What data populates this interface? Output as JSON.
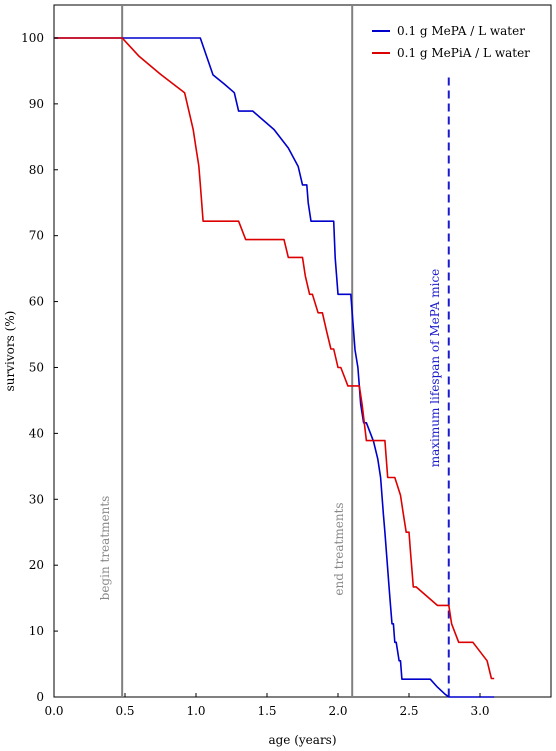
{
  "chart_data": {
    "type": "line",
    "title": "",
    "xlabel": "age (years)",
    "ylabel": "survivors (%)",
    "xlim": [
      0,
      3.5
    ],
    "ylim": [
      0,
      105
    ],
    "xticks": [
      0.0,
      0.5,
      1.0,
      1.5,
      2.0,
      2.5,
      3.0
    ],
    "xtick_labels": [
      "0.0",
      "0.5",
      "1.0",
      "1.5",
      "2.0",
      "2.5",
      "3.0"
    ],
    "yticks": [
      0,
      10,
      20,
      30,
      40,
      50,
      60,
      70,
      80,
      90,
      100
    ],
    "ytick_labels": [
      "0",
      "10",
      "20",
      "30",
      "40",
      "50",
      "60",
      "70",
      "80",
      "90",
      "100"
    ],
    "grid": false,
    "legend_position": "top-right",
    "series": [
      {
        "name": "0.1 g MePA / L water",
        "color": "#0000cc",
        "x": [
          0,
          1.03,
          1.12,
          1.2,
          1.27,
          1.3,
          1.31,
          1.4,
          1.55,
          1.65,
          1.72,
          1.75,
          1.76,
          1.78,
          1.79,
          1.81,
          1.82,
          1.97,
          1.98,
          1.99,
          2.0,
          2.01,
          2.02,
          2.09,
          2.1,
          2.11,
          2.12,
          2.14,
          2.16,
          2.18,
          2.2,
          2.25,
          2.28,
          2.3,
          2.32,
          2.33,
          2.34,
          2.35,
          2.36,
          2.37,
          2.38,
          2.39,
          2.4,
          2.41,
          2.43,
          2.44,
          2.45,
          2.47,
          2.5,
          2.55,
          2.65,
          2.7,
          2.75,
          2.78,
          2.8,
          3.0,
          3.1
        ],
        "y": [
          100,
          100,
          94.4,
          93.0,
          91.7,
          88.9,
          88.9,
          88.9,
          86.1,
          83.3,
          80.5,
          77.7,
          77.7,
          77.7,
          75.0,
          72.2,
          72.2,
          72.2,
          66.6,
          63.9,
          61.1,
          61.1,
          61.1,
          61.1,
          58.3,
          55.5,
          52.7,
          50.0,
          44.4,
          41.6,
          41.6,
          38.8,
          36.1,
          33.3,
          27.7,
          25.0,
          22.2,
          19.4,
          16.6,
          13.9,
          11.1,
          11.1,
          8.3,
          8.3,
          5.5,
          5.5,
          2.7,
          2.7,
          2.7,
          2.7,
          2.7,
          1.5,
          0.5,
          0,
          0,
          0,
          0
        ]
      },
      {
        "name": "0.1 g MePiA / L water",
        "color": "#dd0000",
        "x": [
          0,
          0.48,
          0.6,
          0.75,
          0.92,
          0.95,
          0.98,
          1.0,
          1.02,
          1.03,
          1.04,
          1.05,
          1.06,
          1.3,
          1.35,
          1.62,
          1.65,
          1.75,
          1.77,
          1.8,
          1.82,
          1.86,
          1.89,
          1.92,
          1.95,
          1.97,
          2.0,
          2.01,
          2.02,
          2.07,
          2.09,
          2.15,
          2.17,
          2.2,
          2.3,
          2.33,
          2.35,
          2.38,
          2.4,
          2.44,
          2.46,
          2.48,
          2.5,
          2.51,
          2.53,
          2.55,
          2.7,
          2.78,
          2.8,
          2.85,
          2.95,
          3.05,
          3.08,
          3.1
        ],
        "y": [
          100,
          100,
          97.2,
          94.5,
          91.7,
          88.9,
          86.1,
          83.3,
          80.6,
          77.8,
          75.0,
          72.2,
          72.2,
          72.2,
          69.4,
          69.4,
          66.7,
          66.7,
          63.9,
          61.1,
          61.1,
          58.3,
          58.3,
          55.5,
          52.8,
          52.8,
          50.0,
          50.0,
          50.0,
          47.2,
          47.2,
          47.2,
          44.4,
          38.9,
          38.9,
          38.9,
          33.3,
          33.3,
          33.3,
          30.6,
          27.8,
          25.0,
          25.0,
          22.2,
          16.7,
          16.7,
          13.9,
          13.9,
          11.1,
          8.3,
          8.3,
          5.5,
          2.8,
          2.8
        ]
      }
    ],
    "vertical_lines": [
      {
        "x": 0.48,
        "label": "begin treatments",
        "style": "solid",
        "color": "#808080"
      },
      {
        "x": 2.1,
        "label": "end treatments",
        "style": "solid",
        "color": "#808080"
      },
      {
        "x": 2.78,
        "label": "maximum lifespan of MePA mice",
        "style": "dashed",
        "color": "#1a1acc",
        "y_top": 94
      }
    ]
  }
}
